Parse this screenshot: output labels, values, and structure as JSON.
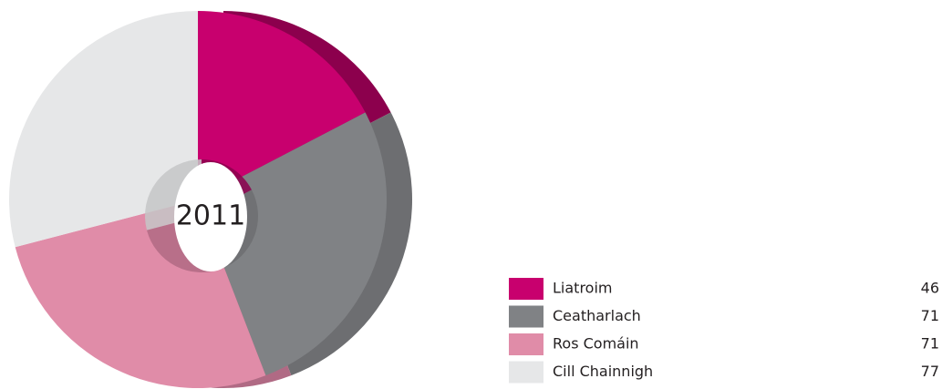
{
  "chart_data": {
    "type": "pie",
    "center_label": "2011",
    "categories": [
      "Liatroim",
      "Ceatharlach",
      "Ros Comáin",
      "Cill Chainnigh"
    ],
    "values": [
      46,
      71,
      71,
      77
    ],
    "colors": [
      "#c8006e",
      "#808285",
      "#e08ca8",
      "#e6e7e8"
    ],
    "side_colors": [
      "#8c004d",
      "#6d6e71",
      "#b06a84",
      "#c4c5c7"
    ]
  }
}
